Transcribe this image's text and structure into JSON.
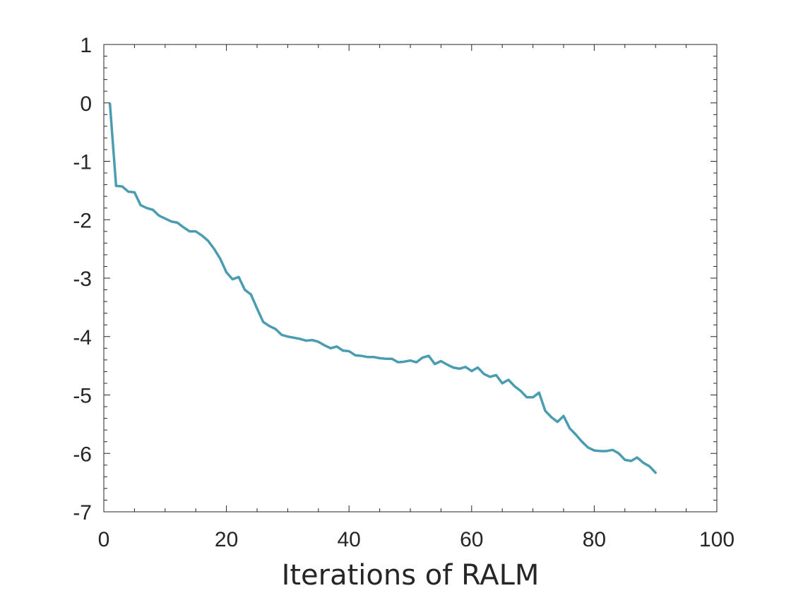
{
  "chart_data": {
    "type": "line",
    "title": "",
    "xlabel": "Iterations of RALM",
    "ylabel": "",
    "xlim": [
      0,
      100
    ],
    "ylim": [
      -7,
      1
    ],
    "xticks": [
      0,
      20,
      40,
      60,
      80,
      100
    ],
    "yticks": [
      1,
      0,
      -1,
      -2,
      -3,
      -4,
      -5,
      -6,
      -7
    ],
    "grid": false,
    "legend": "none",
    "series": [
      {
        "color": "#4a9db0",
        "x": [
          1,
          2,
          3,
          4,
          5,
          6,
          7,
          8,
          9,
          10,
          11,
          12,
          13,
          14,
          15,
          16,
          17,
          18,
          19,
          20,
          21,
          22,
          23,
          24,
          25,
          26,
          27,
          28,
          29,
          30,
          31,
          32,
          33,
          34,
          35,
          36,
          37,
          38,
          39,
          40,
          41,
          42,
          43,
          44,
          45,
          46,
          47,
          48,
          49,
          50,
          51,
          52,
          53,
          54,
          55,
          56,
          57,
          58,
          59,
          60,
          61,
          62,
          63,
          64,
          65,
          66,
          67,
          68,
          69,
          70,
          71,
          72,
          73,
          74,
          75,
          76,
          77,
          78,
          79,
          80,
          81,
          82,
          83,
          84,
          85,
          86,
          87,
          88,
          89,
          90
        ],
        "y": [
          -0.02,
          -1.42,
          -1.43,
          -1.52,
          -1.53,
          -1.75,
          -1.8,
          -1.83,
          -1.93,
          -1.98,
          -2.03,
          -2.05,
          -2.13,
          -2.2,
          -2.2,
          -2.27,
          -2.36,
          -2.5,
          -2.67,
          -2.9,
          -3.02,
          -2.98,
          -3.2,
          -3.28,
          -3.52,
          -3.75,
          -3.82,
          -3.87,
          -3.97,
          -4.0,
          -4.02,
          -4.04,
          -4.07,
          -4.06,
          -4.09,
          -4.15,
          -4.2,
          -4.17,
          -4.24,
          -4.25,
          -4.32,
          -4.33,
          -4.35,
          -4.35,
          -4.37,
          -4.38,
          -4.38,
          -4.44,
          -4.43,
          -4.41,
          -4.44,
          -4.36,
          -4.33,
          -4.47,
          -4.42,
          -4.48,
          -4.53,
          -4.55,
          -4.52,
          -4.59,
          -4.53,
          -4.64,
          -4.69,
          -4.66,
          -4.8,
          -4.74,
          -4.85,
          -4.93,
          -5.04,
          -5.04,
          -4.96,
          -5.27,
          -5.38,
          -5.46,
          -5.36,
          -5.57,
          -5.68,
          -5.8,
          -5.9,
          -5.95,
          -5.96,
          -5.96,
          -5.94,
          -6.0,
          -6.11,
          -6.13,
          -6.07,
          -6.16,
          -6.22,
          -6.33
        ]
      }
    ]
  }
}
